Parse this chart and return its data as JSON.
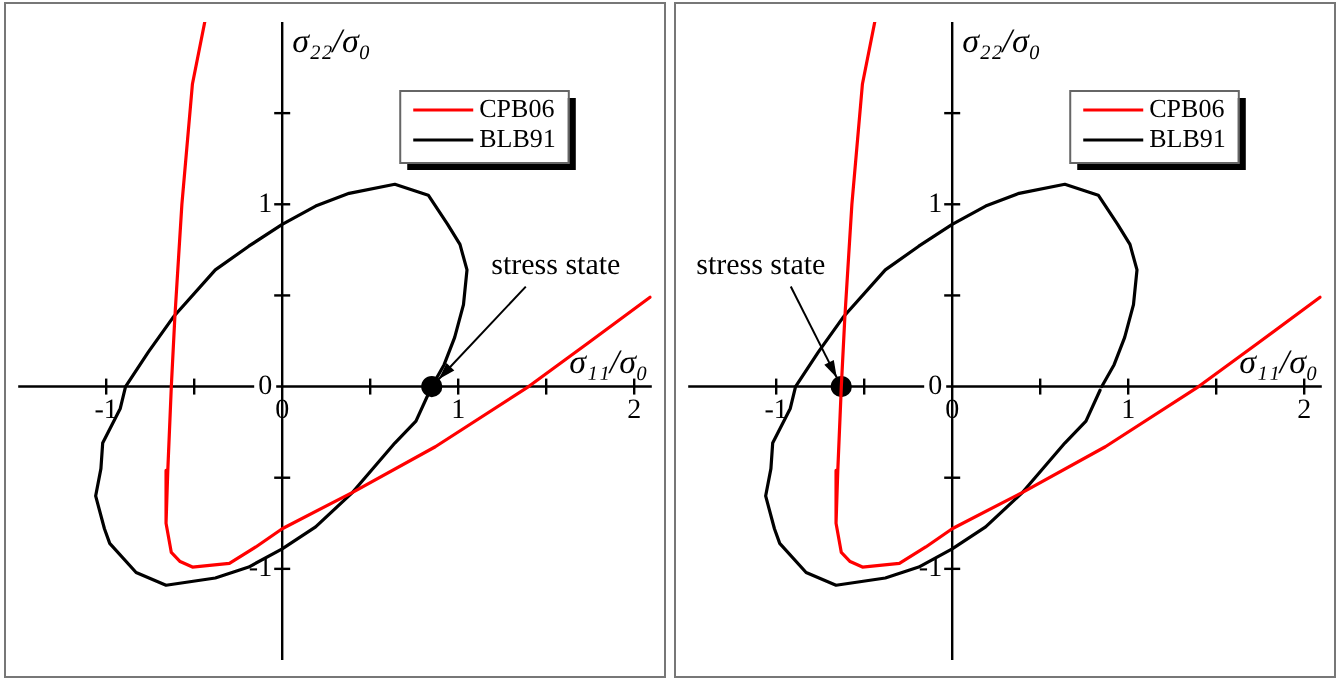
{
  "chart_data": [
    {
      "type": "line",
      "xlabel": "σ₁₁/σ₀",
      "ylabel": "σ₂₂/σ₀",
      "xlim": [
        -1.5,
        2.1
      ],
      "ylim": [
        -1.5,
        2.0
      ],
      "xticks": [
        -1,
        {
          "value": -0.5,
          "label": null
        },
        0,
        {
          "value": 0.5,
          "label": null
        },
        1,
        {
          "value": 1.5,
          "label": null
        },
        2
      ],
      "yticks": [
        -1,
        {
          "value": -0.5,
          "label": null
        },
        0,
        {
          "value": 0.5,
          "label": null
        },
        1,
        {
          "value": 1.5,
          "label": null
        }
      ],
      "grid": false,
      "legend": "top right",
      "series": [
        {
          "name": "CPB06",
          "color": "#ff0000",
          "x": [
            -0.44,
            -0.51,
            -0.57,
            -0.61,
            -0.63,
            -0.65,
            -0.66,
            -0.63,
            -0.58,
            -0.51,
            -0.3,
            -0.15,
            0,
            0.4,
            0.87,
            1.4,
            1.74,
            2.09
          ],
          "values": [
            2.0,
            1.66,
            1.0,
            0.38,
            0,
            -0.46,
            -0.75,
            -0.91,
            -0.96,
            -0.99,
            -0.97,
            -0.88,
            -0.78,
            -0.58,
            -0.33,
            0,
            0.24,
            0.49
          ]
        },
        {
          "name": "BLB91",
          "color": "#000000",
          "x": [
            0.85,
            0.92,
            0.98,
            1.03,
            1.05,
            1.01,
            0.94,
            0.83,
            0.64,
            0.38,
            0.19,
            0,
            -0.19,
            -0.38,
            -0.62,
            -0.76,
            -0.89,
            -0.92,
            -1.02,
            -1.03,
            -1.06,
            -1.01,
            -0.98,
            -0.83,
            -0.66,
            -0.38,
            -0.19,
            0,
            0.19,
            0.4,
            0.64,
            0.76,
            0.84
          ],
          "values": [
            0,
            0.12,
            0.27,
            0.45,
            0.64,
            0.78,
            0.89,
            1.05,
            1.11,
            1.06,
            0.99,
            0.89,
            0.77,
            0.64,
            0.38,
            0.19,
            0,
            -0.12,
            -0.31,
            -0.45,
            -0.6,
            -0.78,
            -0.86,
            -1.02,
            -1.09,
            -1.05,
            -0.99,
            -0.89,
            -0.77,
            -0.58,
            -0.31,
            -0.19,
            -0.02
          ]
        },
        {
          "type": "scatter",
          "color": "#000000",
          "marker": "circle",
          "x": [
            0.85
          ],
          "values": [
            0
          ]
        }
      ],
      "annotations": [
        {
          "text": "stress state",
          "x": 0.85,
          "y": 0
        }
      ]
    },
    {
      "type": "line",
      "xlabel": "σ₁₁/σ₀",
      "ylabel": "σ₂₂/σ₀",
      "xlim": [
        -1.5,
        2.1
      ],
      "ylim": [
        -1.5,
        2.0
      ],
      "xticks": [
        -1,
        {
          "value": -0.5,
          "label": null
        },
        0,
        {
          "value": 0.5,
          "label": null
        },
        1,
        {
          "value": 1.5,
          "label": null
        },
        2
      ],
      "yticks": [
        -1,
        {
          "value": -0.5,
          "label": null
        },
        0,
        {
          "value": 0.5,
          "label": null
        },
        1,
        {
          "value": 1.5,
          "label": null
        }
      ],
      "grid": false,
      "legend": "top right",
      "series": [
        {
          "name": "CPB06",
          "color": "#ff0000",
          "x": [
            -0.44,
            -0.51,
            -0.57,
            -0.61,
            -0.63,
            -0.65,
            -0.66,
            -0.63,
            -0.58,
            -0.51,
            -0.3,
            -0.15,
            0,
            0.4,
            0.87,
            1.4,
            1.74,
            2.09
          ],
          "values": [
            2.0,
            1.66,
            1.0,
            0.38,
            0,
            -0.46,
            -0.75,
            -0.91,
            -0.96,
            -0.99,
            -0.97,
            -0.88,
            -0.78,
            -0.58,
            -0.33,
            0,
            0.24,
            0.49
          ]
        },
        {
          "name": "BLB91",
          "color": "#000000",
          "x": [
            0.85,
            0.92,
            0.98,
            1.03,
            1.05,
            1.01,
            0.94,
            0.83,
            0.64,
            0.38,
            0.19,
            0,
            -0.19,
            -0.38,
            -0.62,
            -0.76,
            -0.89,
            -0.92,
            -1.02,
            -1.03,
            -1.06,
            -1.01,
            -0.98,
            -0.83,
            -0.66,
            -0.38,
            -0.19,
            0,
            0.19,
            0.4,
            0.64,
            0.76,
            0.84
          ],
          "values": [
            0,
            0.12,
            0.27,
            0.45,
            0.64,
            0.78,
            0.89,
            1.05,
            1.11,
            1.06,
            0.99,
            0.89,
            0.77,
            0.64,
            0.38,
            0.19,
            0,
            -0.12,
            -0.31,
            -0.45,
            -0.6,
            -0.78,
            -0.86,
            -1.02,
            -1.09,
            -1.05,
            -0.99,
            -0.89,
            -0.77,
            -0.58,
            -0.31,
            -0.19,
            -0.02
          ]
        },
        {
          "type": "scatter",
          "color": "#000000",
          "marker": "circle",
          "x": [
            -0.63
          ],
          "values": [
            0
          ]
        }
      ],
      "annotations": [
        {
          "text": "stress state",
          "x": -0.63,
          "y": 0
        }
      ]
    }
  ]
}
